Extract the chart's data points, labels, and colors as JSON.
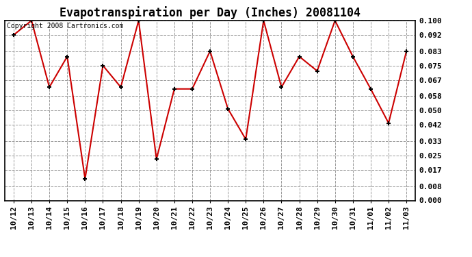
{
  "title": "Evapotranspiration per Day (Inches) 20081104",
  "copyright_text": "Copyright 2008 Cartronics.com",
  "categories": [
    "10/12",
    "10/13",
    "10/14",
    "10/15",
    "10/16",
    "10/17",
    "10/18",
    "10/19",
    "10/20",
    "10/21",
    "10/22",
    "10/23",
    "10/24",
    "10/25",
    "10/26",
    "10/27",
    "10/28",
    "10/29",
    "10/30",
    "10/31",
    "11/01",
    "11/02",
    "11/03"
  ],
  "values": [
    0.092,
    0.1,
    0.063,
    0.08,
    0.012,
    0.075,
    0.063,
    0.1,
    0.023,
    0.062,
    0.062,
    0.083,
    0.051,
    0.034,
    0.1,
    0.063,
    0.08,
    0.072,
    0.1,
    0.08,
    0.062,
    0.043,
    0.083
  ],
  "line_color": "#cc0000",
  "marker_color": "#000000",
  "bg_color": "#e0e0e0",
  "plot_bg": "#f0f0f0",
  "ylim": [
    0.0,
    0.1
  ],
  "yticks": [
    0.0,
    0.008,
    0.017,
    0.025,
    0.033,
    0.042,
    0.05,
    0.058,
    0.067,
    0.075,
    0.083,
    0.092,
    0.1
  ],
  "title_fontsize": 12,
  "tick_fontsize": 8,
  "copyright_fontsize": 7
}
